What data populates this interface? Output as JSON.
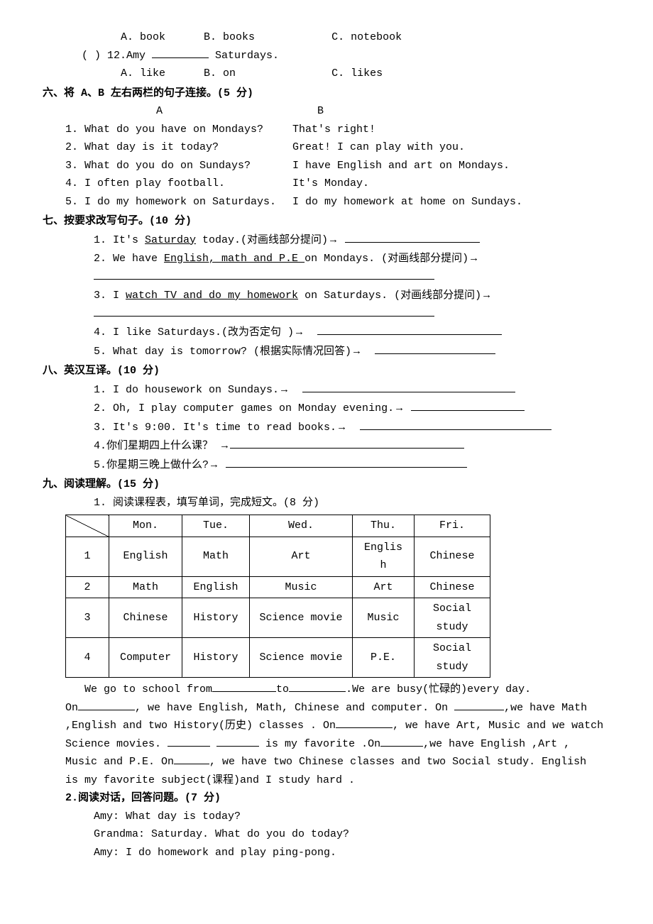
{
  "q11": {
    "a_label": "A. book",
    "b_label": "B. books",
    "c_label": "C. notebook"
  },
  "q12": {
    "prefix": "(    ) 12.Amy ",
    "suffix": " Saturdays.",
    "a_label": "A. like",
    "b_label": "B. on",
    "c_label": "C. likes"
  },
  "sec6": {
    "title": "六、将 A、B 左右两栏的句子连接。(5 分)",
    "head_a": "A",
    "head_b": "B",
    "rows": [
      {
        "a": "1. What do you have on Mondays?",
        "b": "That's right!"
      },
      {
        "a": "2. What day is it today?",
        "b": "Great! I can play with you."
      },
      {
        "a": "3. What do you do on Sundays?",
        "b": "I have English and art on Mondays."
      },
      {
        "a": "4. I often play football.",
        "b": "It's Monday."
      },
      {
        "a": "5. I do my homework on Saturdays.",
        "b": "I do my homework at home on Sundays."
      }
    ]
  },
  "sec7": {
    "title": "七、按要求改写句子。(10 分)",
    "items": [
      {
        "pre": "1. It's ",
        "u": "Saturday",
        "post": " today.(对画线部分提问)",
        "arrow": true
      },
      {
        "pre": "2. We have ",
        "u": "English, math and P.E ",
        "post": "on Mondays. (对画线部分提问)",
        "arrow": true,
        "below": true
      },
      {
        "pre": "3. I ",
        "u": "watch TV and do my homework",
        "post": " on Saturdays. (对画线部分提问)",
        "arrow": true,
        "below": true
      },
      {
        "pre": "4. I like Saturdays.(改为否定句 )",
        "u": "",
        "post": "",
        "arrow": true
      },
      {
        "pre": "5. What day is tomorrow? (根据实际情况回答)",
        "u": "",
        "post": "",
        "arrow": true
      }
    ]
  },
  "sec8": {
    "title": "八、英汉互译。(10 分)",
    "items": [
      "1. I do housework on Sundays.",
      "2. Oh, I play computer games on Monday evening.",
      "3. It's 9:00. It's time to read books.",
      "4.你们星期四上什么课？ ",
      "5.你星期三晚上做什么?"
    ]
  },
  "sec9": {
    "title": "九、阅读理解。(15 分)",
    "sub1": "1. 阅读课程表，填写单词，完成短文。(8 分)"
  },
  "table": {
    "headers": [
      "",
      "Mon.",
      "Tue.",
      "Wed.",
      "Thu.",
      "Fri."
    ],
    "col_widths": [
      "44px",
      "86px",
      "78px",
      "128px",
      "70px",
      "90px"
    ],
    "rows": [
      [
        "1",
        "English",
        "Math",
        "Art",
        "Englis\nh",
        "Chinese"
      ],
      [
        "2",
        "Math",
        "English",
        "Music",
        "Art",
        "Chinese"
      ],
      [
        "3",
        "Chinese",
        "History",
        "Science movie",
        "Music",
        "Social\nstudy"
      ],
      [
        "4",
        "Computer",
        "History",
        "Science movie",
        "P.E.",
        "Social\nstudy"
      ]
    ]
  },
  "passage": {
    "l1a": "We go to school from",
    "l1b": "to",
    "l1c": ".We are busy(忙碌的)every day.",
    "l2a": "On",
    "l2b": ", we have English, Math, Chinese and computer. On ",
    "l2c": ",we have Math",
    "l3": ",English and two History(历史) classes . On",
    "l3b": ", we have Art, Music and we watch",
    "l4a": "Science movies. ",
    "l4b": " is my favorite .On",
    "l4c": ",we have English ,Art ,",
    "l5a": "Music and P.E. On",
    "l5b": ", we have two Chinese classes and two Social study. English",
    "l6": "is my favorite subject(课程)and I study hard ."
  },
  "sec9b": {
    "title": "2.阅读对话，回答问题。(7 分)",
    "lines": [
      "Amy: What day is today?",
      "Grandma: Saturday. What do you do today?",
      "Amy: I do homework and play ping-pong."
    ]
  }
}
